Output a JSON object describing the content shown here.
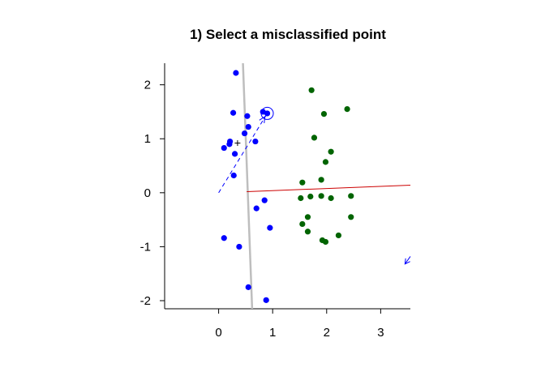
{
  "chart_data": {
    "type": "scatter",
    "title": "1) Select a misclassified point",
    "xlabel": "",
    "ylabel": "",
    "xlim": [
      -1.0,
      3.55
    ],
    "ylim": [
      -2.15,
      2.4
    ],
    "xticks": [
      "0",
      "1",
      "2",
      "3"
    ],
    "yticks": [
      "-2",
      "-1",
      "0",
      "1",
      "2"
    ],
    "colors": {
      "class_a": "#0000ff",
      "class_b": "#006400",
      "boundary": "#bebebe",
      "normal_vector": "#cc0000",
      "axes": "#000000"
    },
    "series": [
      {
        "class": "blue",
        "points": [
          [
            0.32,
            2.22
          ],
          [
            0.27,
            1.48
          ],
          [
            0.82,
            1.5
          ],
          [
            0.53,
            1.42
          ],
          [
            0.9,
            1.47
          ],
          [
            0.55,
            1.22
          ],
          [
            0.48,
            1.1
          ],
          [
            0.21,
            0.95
          ],
          [
            0.2,
            0.9
          ],
          [
            0.68,
            0.95
          ],
          [
            0.1,
            0.83
          ],
          [
            0.3,
            0.72
          ],
          [
            0.28,
            0.32
          ],
          [
            0.85,
            -0.14
          ],
          [
            0.7,
            -0.29
          ],
          [
            0.95,
            -0.65
          ],
          [
            0.1,
            -0.84
          ],
          [
            0.38,
            -1.0
          ],
          [
            0.55,
            -1.75
          ],
          [
            0.88,
            -1.99
          ]
        ]
      },
      {
        "class": "green",
        "points": [
          [
            1.72,
            1.9
          ],
          [
            2.38,
            1.55
          ],
          [
            1.95,
            1.46
          ],
          [
            1.77,
            1.02
          ],
          [
            2.08,
            0.76
          ],
          [
            1.98,
            0.57
          ],
          [
            1.55,
            0.19
          ],
          [
            1.9,
            0.24
          ],
          [
            1.52,
            -0.1
          ],
          [
            1.7,
            -0.07
          ],
          [
            1.9,
            -0.06
          ],
          [
            2.08,
            -0.1
          ],
          [
            2.45,
            -0.06
          ],
          [
            1.65,
            -0.45
          ],
          [
            2.45,
            -0.45
          ],
          [
            1.55,
            -0.58
          ],
          [
            1.65,
            -0.72
          ],
          [
            2.22,
            -0.79
          ],
          [
            1.92,
            -0.88
          ],
          [
            1.98,
            -0.91
          ]
        ]
      }
    ],
    "selected_point": [
      0.9,
      1.47
    ],
    "boundary_line": {
      "from": [
        0.45,
        2.4
      ],
      "to": [
        0.62,
        -2.15
      ]
    },
    "normal_vector": {
      "from": [
        0.52,
        0.02
      ],
      "to": [
        3.55,
        0.14
      ]
    },
    "update_vector": {
      "from": [
        0.9,
        1.47
      ],
      "to": [
        0.0,
        0.0
      ]
    },
    "markers": {
      "plus_at": [
        0.35,
        0.92
      ]
    },
    "offscreen_arrow": {
      "from": [
        3.55,
        -1.18
      ],
      "to": [
        3.45,
        -1.32
      ]
    },
    "grid": false
  }
}
